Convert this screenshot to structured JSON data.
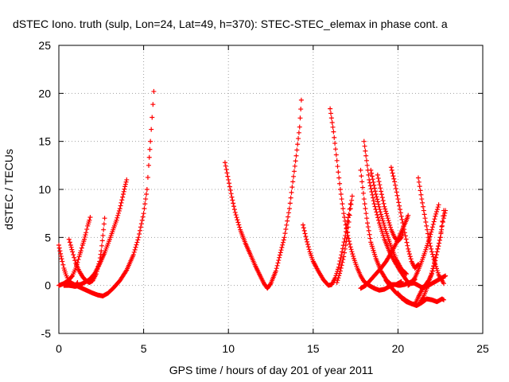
{
  "chart_data": {
    "type": "scatter",
    "title": "dSTEC Iono. truth (sulp, Lon=24, Lat=49, h=370): STEC-STEC_elemax in phase cont. a",
    "xlabel": "GPS time / hours of day 201 of year 2011",
    "ylabel": "dSTEC  / TECUs",
    "xlim": [
      0,
      25
    ],
    "ylim": [
      -5,
      25
    ],
    "xticks": [
      0,
      5,
      10,
      15,
      20,
      25
    ],
    "yticks": [
      -5,
      0,
      5,
      10,
      15,
      20,
      25
    ],
    "grid": true,
    "marker": "+",
    "color": "#ff0000",
    "series": [
      {
        "x": [
          0.0,
          0.1,
          0.2,
          0.3,
          0.4,
          0.5,
          0.6,
          0.75,
          0.9,
          1.0,
          1.1
        ],
        "y": [
          4.2,
          3.3,
          2.5,
          1.8,
          1.2,
          0.8,
          0.4,
          0.1,
          -0.1,
          0.0,
          0.3
        ]
      },
      {
        "x": [
          0.0,
          0.3,
          0.6,
          0.8,
          0.9,
          1.0,
          1.1,
          1.2,
          1.3,
          1.4,
          1.5,
          1.6,
          1.7,
          1.8,
          1.85
        ],
        "y": [
          0.0,
          0.2,
          0.6,
          1.0,
          1.4,
          1.8,
          2.4,
          3.0,
          3.6,
          4.2,
          4.8,
          5.5,
          6.2,
          6.8,
          7.1
        ]
      },
      {
        "x": [
          0.6,
          0.7,
          0.8,
          0.9,
          1.0,
          1.2,
          1.4,
          1.6,
          1.8,
          2.0,
          2.2,
          2.4,
          2.5,
          2.6,
          2.7
        ],
        "y": [
          4.8,
          4.2,
          3.5,
          2.9,
          2.3,
          1.5,
          0.9,
          0.5,
          0.3,
          0.5,
          1.2,
          2.5,
          3.6,
          5.2,
          7.0
        ]
      },
      {
        "x": [
          0.3,
          0.6,
          1.0,
          1.4,
          1.8,
          2.1,
          2.4,
          2.7,
          3.0,
          3.2,
          3.4,
          3.6,
          3.8,
          3.9,
          4.0
        ],
        "y": [
          0.0,
          0.0,
          -0.1,
          0.2,
          0.6,
          1.2,
          2.2,
          3.4,
          4.8,
          5.8,
          6.8,
          8.0,
          9.5,
          10.3,
          11.0
        ]
      },
      {
        "x": [
          0.5,
          1.0,
          1.5,
          2.0,
          2.3,
          2.6,
          2.9,
          3.2,
          3.6,
          4.0,
          4.4,
          4.7,
          5.0,
          5.2,
          5.3,
          5.4,
          5.5,
          5.6
        ],
        "y": [
          0.5,
          0.0,
          -0.4,
          -0.8,
          -1.0,
          -1.1,
          -0.8,
          -0.3,
          0.5,
          1.6,
          3.2,
          5.0,
          7.5,
          10.0,
          12.5,
          15.0,
          17.5,
          20.2
        ]
      },
      {
        "x": [
          9.8,
          10.0,
          10.2,
          10.4,
          10.7,
          11.0,
          11.3,
          11.6,
          11.9,
          12.1,
          12.3,
          12.5,
          12.8,
          13.0,
          13.3,
          13.6,
          13.8,
          14.0,
          14.2,
          14.3
        ],
        "y": [
          12.8,
          11.0,
          9.2,
          7.6,
          5.8,
          4.4,
          3.2,
          2.0,
          0.9,
          0.2,
          -0.3,
          0.2,
          1.5,
          2.9,
          5.0,
          8.0,
          10.8,
          13.5,
          16.5,
          19.3
        ]
      },
      {
        "x": [
          14.4,
          14.6,
          14.8,
          15.0,
          15.3,
          15.6,
          15.9,
          16.1,
          16.3,
          16.5,
          16.7,
          16.9,
          17.0,
          17.1,
          17.2
        ],
        "y": [
          6.3,
          4.8,
          3.5,
          2.5,
          1.5,
          0.6,
          0.0,
          0.1,
          0.8,
          1.9,
          3.5,
          5.2,
          6.4,
          7.4,
          8.5
        ]
      },
      {
        "x": [
          16.0,
          16.2,
          16.4,
          16.6,
          16.8,
          17.0,
          17.2,
          17.4,
          17.6,
          17.8,
          18.0,
          18.3,
          18.6,
          18.9,
          19.2,
          19.5,
          19.8,
          20.1,
          20.4,
          20.7,
          21.0
        ],
        "y": [
          18.4,
          16.0,
          13.0,
          10.0,
          7.5,
          5.5,
          4.0,
          2.8,
          1.8,
          1.0,
          0.4,
          0.0,
          -0.3,
          -0.5,
          -0.4,
          -0.1,
          0.1,
          0.0,
          0.1,
          0.3,
          0.6
        ]
      },
      {
        "x": [
          16.4,
          16.6,
          16.8,
          17.0,
          17.1,
          17.2,
          17.3
        ],
        "y": [
          0.3,
          1.5,
          3.0,
          5.0,
          6.6,
          8.0,
          9.3
        ]
      },
      {
        "x": [
          17.8,
          18.0,
          18.2,
          18.4,
          18.7,
          19.0,
          19.3,
          19.6,
          19.9,
          20.2
        ],
        "y": [
          12.0,
          9.0,
          6.5,
          4.5,
          2.8,
          1.5,
          0.6,
          0.1,
          0.1,
          0.4
        ]
      },
      {
        "x": [
          18.0,
          18.3,
          18.6,
          18.9,
          19.2,
          19.5,
          19.8,
          20.1,
          20.4,
          20.6,
          20.8,
          21.0
        ],
        "y": [
          15.0,
          11.0,
          8.5,
          6.5,
          4.8,
          3.5,
          2.5,
          1.6,
          0.8,
          0.3,
          0.2,
          0.3
        ]
      },
      {
        "x": [
          18.4,
          18.7,
          19.0,
          19.3,
          19.6,
          19.9,
          20.2,
          20.5
        ],
        "y": [
          12.0,
          9.5,
          7.4,
          5.6,
          4.0,
          2.7,
          1.7,
          1.2
        ]
      },
      {
        "x": [
          18.8,
          19.0,
          19.2,
          19.4,
          19.6,
          19.8,
          20.0,
          20.2,
          20.3
        ],
        "y": [
          11.5,
          9.8,
          8.2,
          7.0,
          5.8,
          5.0,
          4.6,
          5.0,
          5.5
        ]
      },
      {
        "x": [
          19.6,
          19.8,
          20.0,
          20.2,
          20.4,
          20.6,
          20.8,
          21.0,
          21.2
        ],
        "y": [
          12.3,
          10.8,
          9.0,
          7.2,
          5.5,
          3.8,
          2.5,
          1.8,
          2.2
        ]
      },
      {
        "x": [
          17.8,
          18.1,
          18.4,
          18.7,
          19.0,
          19.3,
          19.6,
          19.9,
          20.1,
          20.3,
          20.5,
          20.6
        ],
        "y": [
          -0.3,
          0.0,
          0.6,
          1.2,
          1.8,
          2.5,
          3.4,
          4.4,
          5.2,
          6.0,
          6.8,
          7.3
        ]
      },
      {
        "x": [
          19.3,
          19.6,
          19.9,
          20.2,
          20.5,
          20.8,
          21.1,
          21.4,
          21.7,
          22.0,
          22.3,
          22.6,
          22.7
        ],
        "y": [
          0.5,
          -0.2,
          -0.8,
          -1.2,
          -1.6,
          -1.9,
          -2.1,
          -1.8,
          -1.4,
          -1.5,
          -1.7,
          -1.4,
          -1.5
        ]
      },
      {
        "x": [
          20.0,
          20.2,
          20.5,
          20.8,
          21.0,
          21.2,
          21.4,
          21.6,
          21.8,
          22.0,
          22.2,
          22.5,
          22.7
        ],
        "y": [
          -0.8,
          -1.3,
          -1.7,
          -1.9,
          -2.0,
          -1.2,
          -0.5,
          0.0,
          0.5,
          1.2,
          2.6,
          5.0,
          7.8
        ]
      },
      {
        "x": [
          21.2,
          21.4,
          21.6,
          21.8,
          22.0,
          22.2,
          22.4,
          22.6,
          22.7
        ],
        "y": [
          11.2,
          9.0,
          7.0,
          5.0,
          3.5,
          2.2,
          1.1,
          0.5,
          0.2
        ]
      },
      {
        "x": [
          20.6,
          20.8,
          21.0,
          21.2,
          21.4,
          21.6,
          21.8,
          22.0,
          22.2,
          22.4
        ],
        "y": [
          0.0,
          0.3,
          0.8,
          1.6,
          2.5,
          3.5,
          4.6,
          5.8,
          7.2,
          8.4
        ]
      },
      {
        "x": [
          20.8,
          21.0,
          21.2,
          21.4,
          21.7,
          22.0,
          22.3,
          22.6,
          22.8
        ],
        "y": [
          0.3,
          0.2,
          0.0,
          -0.2,
          -0.1,
          0.2,
          0.5,
          0.8,
          1.0
        ]
      },
      {
        "x": [
          21.3,
          21.5,
          21.7,
          21.9,
          22.1,
          22.3,
          22.5,
          22.6,
          22.7,
          22.8
        ],
        "y": [
          -1.8,
          -1.2,
          -0.3,
          0.8,
          2.0,
          3.5,
          5.0,
          6.2,
          7.0,
          7.8
        ]
      }
    ]
  }
}
